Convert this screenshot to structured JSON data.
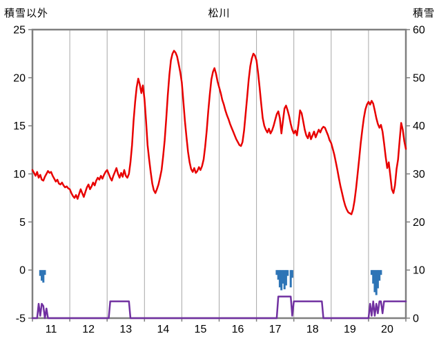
{
  "chart_data": {
    "type": "line+bar",
    "title": "松川",
    "colors": {
      "grid": "#a6a6a6",
      "frame": "#7f7f7f",
      "red": "#e80000",
      "blue": "#2e75b6",
      "purple": "#7030a0",
      "text": "#000000"
    },
    "left_axis": {
      "title": "積雪以外",
      "min": -5,
      "max": 25,
      "ticks": [
        25,
        20,
        15,
        10,
        5,
        0,
        -5
      ]
    },
    "right_axis": {
      "title": "積雪",
      "min": 0,
      "max": 60,
      "ticks": [
        60,
        50,
        40,
        30,
        20,
        10,
        0
      ]
    },
    "x_axis": {
      "labels": [
        "11",
        "12",
        "13",
        "14",
        "15",
        "16",
        "17",
        "18",
        "19",
        "20"
      ],
      "hours_per_day": 24,
      "domain_hours": [
        0,
        240
      ],
      "gridlines": "day-boundaries"
    },
    "series": [
      {
        "id": "red_line",
        "type": "line_hourly",
        "axis": "left",
        "color": "#e80000",
        "x_start_hour": 0,
        "x_step_hours": 1,
        "values": [
          10.4,
          10.1,
          9.8,
          10.2,
          9.6,
          9.9,
          9.4,
          9.3,
          9.7,
          10.0,
          10.3,
          10.1,
          10.2,
          9.8,
          9.5,
          9.2,
          9.4,
          9.0,
          8.9,
          9.1,
          8.8,
          8.6,
          8.7,
          8.5,
          8.4,
          8.0,
          7.7,
          7.5,
          7.8,
          7.4,
          7.9,
          8.4,
          8.0,
          7.6,
          8.1,
          8.6,
          8.9,
          8.4,
          8.7,
          9.1,
          8.8,
          9.3,
          9.6,
          9.4,
          9.8,
          9.5,
          9.9,
          10.2,
          10.4,
          10.0,
          9.6,
          9.3,
          9.8,
          10.2,
          10.6,
          10.0,
          9.6,
          10.1,
          9.7,
          10.4,
          9.8,
          9.6,
          10.0,
          11.2,
          13.0,
          15.5,
          17.5,
          19.0,
          19.9,
          19.3,
          18.4,
          19.2,
          17.8,
          15.5,
          13.0,
          11.5,
          10.2,
          9.0,
          8.3,
          8.0,
          8.4,
          8.9,
          9.6,
          10.4,
          11.8,
          13.5,
          15.8,
          18.2,
          20.3,
          21.8,
          22.5,
          22.8,
          22.6,
          22.2,
          21.4,
          20.6,
          19.5,
          17.5,
          15.5,
          13.8,
          12.3,
          11.2,
          10.5,
          10.2,
          10.6,
          10.1,
          10.3,
          10.7,
          10.4,
          10.8,
          11.5,
          12.8,
          14.5,
          16.5,
          18.3,
          19.8,
          20.6,
          21.0,
          20.4,
          19.6,
          19.0,
          18.4,
          17.7,
          17.2,
          16.6,
          16.1,
          15.7,
          15.2,
          14.8,
          14.4,
          14.0,
          13.6,
          13.3,
          13.0,
          12.9,
          13.3,
          14.5,
          16.2,
          18.0,
          19.8,
          21.2,
          22.0,
          22.5,
          22.3,
          21.8,
          20.5,
          19.0,
          17.3,
          15.8,
          15.0,
          14.6,
          14.3,
          14.7,
          14.2,
          14.5,
          15.0,
          15.6,
          16.2,
          16.5,
          15.8,
          14.2,
          15.5,
          16.8,
          17.1,
          16.6,
          16.0,
          15.2,
          14.6,
          14.2,
          14.5,
          14.0,
          15.2,
          16.6,
          16.3,
          15.5,
          14.6,
          14.0,
          13.7,
          14.3,
          13.6,
          14.0,
          14.4,
          13.8,
          14.2,
          14.6,
          14.3,
          14.7,
          14.9,
          14.8,
          14.4,
          14.0,
          13.5,
          13.2,
          12.6,
          12.0,
          11.2,
          10.4,
          9.5,
          8.7,
          8.0,
          7.3,
          6.7,
          6.3,
          6.0,
          5.9,
          5.8,
          6.3,
          7.2,
          8.5,
          10.0,
          11.6,
          13.2,
          14.6,
          15.8,
          16.7,
          17.2,
          17.5,
          17.2,
          17.6,
          17.3,
          16.6,
          15.8,
          15.2,
          14.8,
          15.1,
          14.4,
          13.2,
          11.8,
          10.6,
          11.2,
          9.8,
          8.4,
          8.0,
          8.8,
          10.5,
          11.5,
          13.5,
          15.3,
          14.6,
          13.4,
          12.6
        ]
      },
      {
        "id": "blue_bars",
        "type": "bars_down_from_zero",
        "axis": "left",
        "color": "#2e75b6",
        "points": [
          [
            5,
            0.6
          ],
          [
            6,
            1.1
          ],
          [
            7,
            1.3
          ],
          [
            8,
            0.5
          ],
          [
            157,
            0.5
          ],
          [
            158,
            1.0
          ],
          [
            159,
            1.8
          ],
          [
            160,
            2.1
          ],
          [
            161,
            1.4
          ],
          [
            162,
            2.0
          ],
          [
            163,
            1.6
          ],
          [
            164,
            0.6
          ],
          [
            166,
            1.8
          ],
          [
            167,
            0.8
          ],
          [
            218,
            0.5
          ],
          [
            219,
            1.4
          ],
          [
            220,
            2.3
          ],
          [
            221,
            2.6
          ],
          [
            222,
            1.9
          ],
          [
            223,
            1.1
          ],
          [
            224,
            0.5
          ]
        ]
      },
      {
        "id": "purple_line",
        "type": "line_xy",
        "axis": "right",
        "color": "#7030a0",
        "points": [
          [
            0,
            0
          ],
          [
            3,
            0
          ],
          [
            4,
            3
          ],
          [
            5,
            0.5
          ],
          [
            6,
            3
          ],
          [
            7,
            2.5
          ],
          [
            8,
            0
          ],
          [
            9,
            2
          ],
          [
            10,
            0
          ],
          [
            49,
            0
          ],
          [
            50,
            3.5
          ],
          [
            62,
            3.5
          ],
          [
            63,
            0
          ],
          [
            157,
            0
          ],
          [
            158,
            4.5
          ],
          [
            166,
            4.5
          ],
          [
            167,
            0.5
          ],
          [
            168,
            3.5
          ],
          [
            186,
            3.5
          ],
          [
            187,
            0
          ],
          [
            216,
            0
          ],
          [
            217,
            3
          ],
          [
            218,
            0.5
          ],
          [
            219,
            3.5
          ],
          [
            220,
            0.5
          ],
          [
            221,
            3
          ],
          [
            222,
            1
          ],
          [
            223,
            3.5
          ],
          [
            224,
            3.5
          ],
          [
            225,
            1
          ],
          [
            226,
            3.5
          ],
          [
            240,
            3.5
          ]
        ]
      }
    ]
  }
}
